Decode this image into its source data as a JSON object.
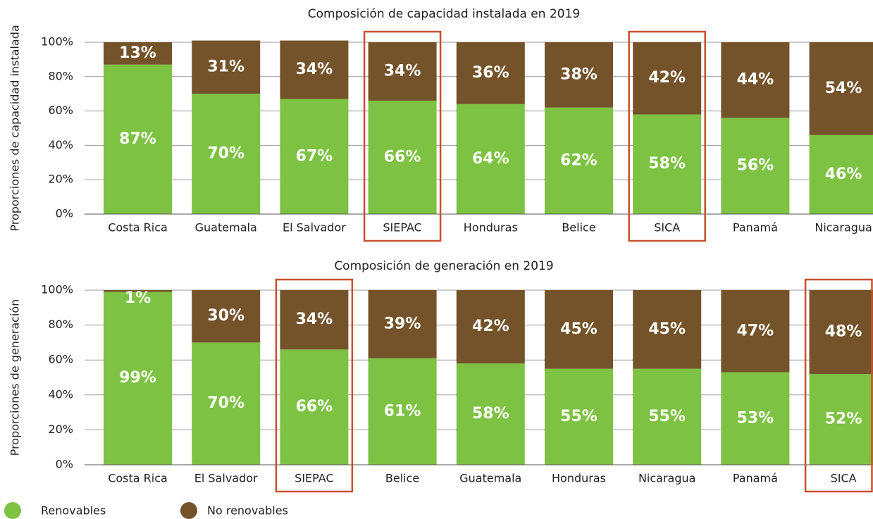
{
  "chart_data": [
    {
      "type": "stacked_bar",
      "title": "Composición de capacidad instalada en 2019",
      "ylabel": "Proporciones de capacidad instalada",
      "categories": [
        "Costa Rica",
        "Guatemala",
        "El Salvador",
        "SIEPAC",
        "Honduras",
        "Belice",
        "SICA",
        "Panamá",
        "Nicaragua"
      ],
      "series": [
        {
          "name": "Renovables",
          "color": "#7dc242",
          "values": [
            87,
            70,
            67,
            66,
            64,
            62,
            58,
            56,
            46
          ],
          "value_labels": [
            "87%",
            "70%",
            "67%",
            "66%",
            "64%",
            "62%",
            "58%",
            "56%",
            "46%"
          ]
        },
        {
          "name": "No renovables",
          "color": "#74532a",
          "values": [
            13,
            31,
            34,
            34,
            36,
            38,
            42,
            44,
            54
          ],
          "value_labels": [
            "13%",
            "31%",
            "34%",
            "34%",
            "36%",
            "38%",
            "42%",
            "44%",
            "54%"
          ]
        }
      ],
      "ylim": [
        0,
        100
      ],
      "yticks": [
        {
          "value": 0,
          "label": "0%"
        },
        {
          "value": 20,
          "label": "20%"
        },
        {
          "value": 40,
          "label": "40%"
        },
        {
          "value": 60,
          "label": "60%"
        },
        {
          "value": 80,
          "label": "80%"
        },
        {
          "value": 100,
          "label": "100%"
        }
      ],
      "grid": true,
      "highlight": [
        3,
        6
      ],
      "highlight_color": "#c8502d"
    },
    {
      "type": "stacked_bar",
      "title": "Composición de generación en 2019",
      "ylabel": "Proporciones de generación",
      "categories": [
        "Costa Rica",
        "El Salvador",
        "SIEPAC",
        "Belice",
        "Guatemala",
        "Honduras",
        "Nicaragua",
        "Panamá",
        "SICA"
      ],
      "series": [
        {
          "color": "#7dc242",
          "values": [
            99,
            70,
            66,
            61,
            58,
            55,
            55,
            53,
            52
          ],
          "value_labels": [
            "99%",
            "70%",
            "66%",
            "61%",
            "58%",
            "55%",
            "55%",
            "53%",
            "52%"
          ]
        },
        {
          "color": "#74532a",
          "values": [
            1,
            30,
            34,
            39,
            42,
            45,
            45,
            47,
            48
          ],
          "value_labels": [
            "1%",
            "30%",
            "34%",
            "39%",
            "42%",
            "45%",
            "45%",
            "47%",
            "48%"
          ]
        }
      ],
      "ylim": [
        0,
        100
      ],
      "yticks": [
        {
          "value": 0,
          "label": "0%"
        },
        {
          "value": 20,
          "label": "20%"
        },
        {
          "value": 40,
          "label": "40%"
        },
        {
          "value": 60,
          "label": "60%"
        },
        {
          "value": 80,
          "label": "80%"
        },
        {
          "value": 100,
          "label": "100%"
        }
      ],
      "grid": true,
      "highlight": [
        2,
        8
      ],
      "highlight_color": "#c8502d"
    }
  ]
}
